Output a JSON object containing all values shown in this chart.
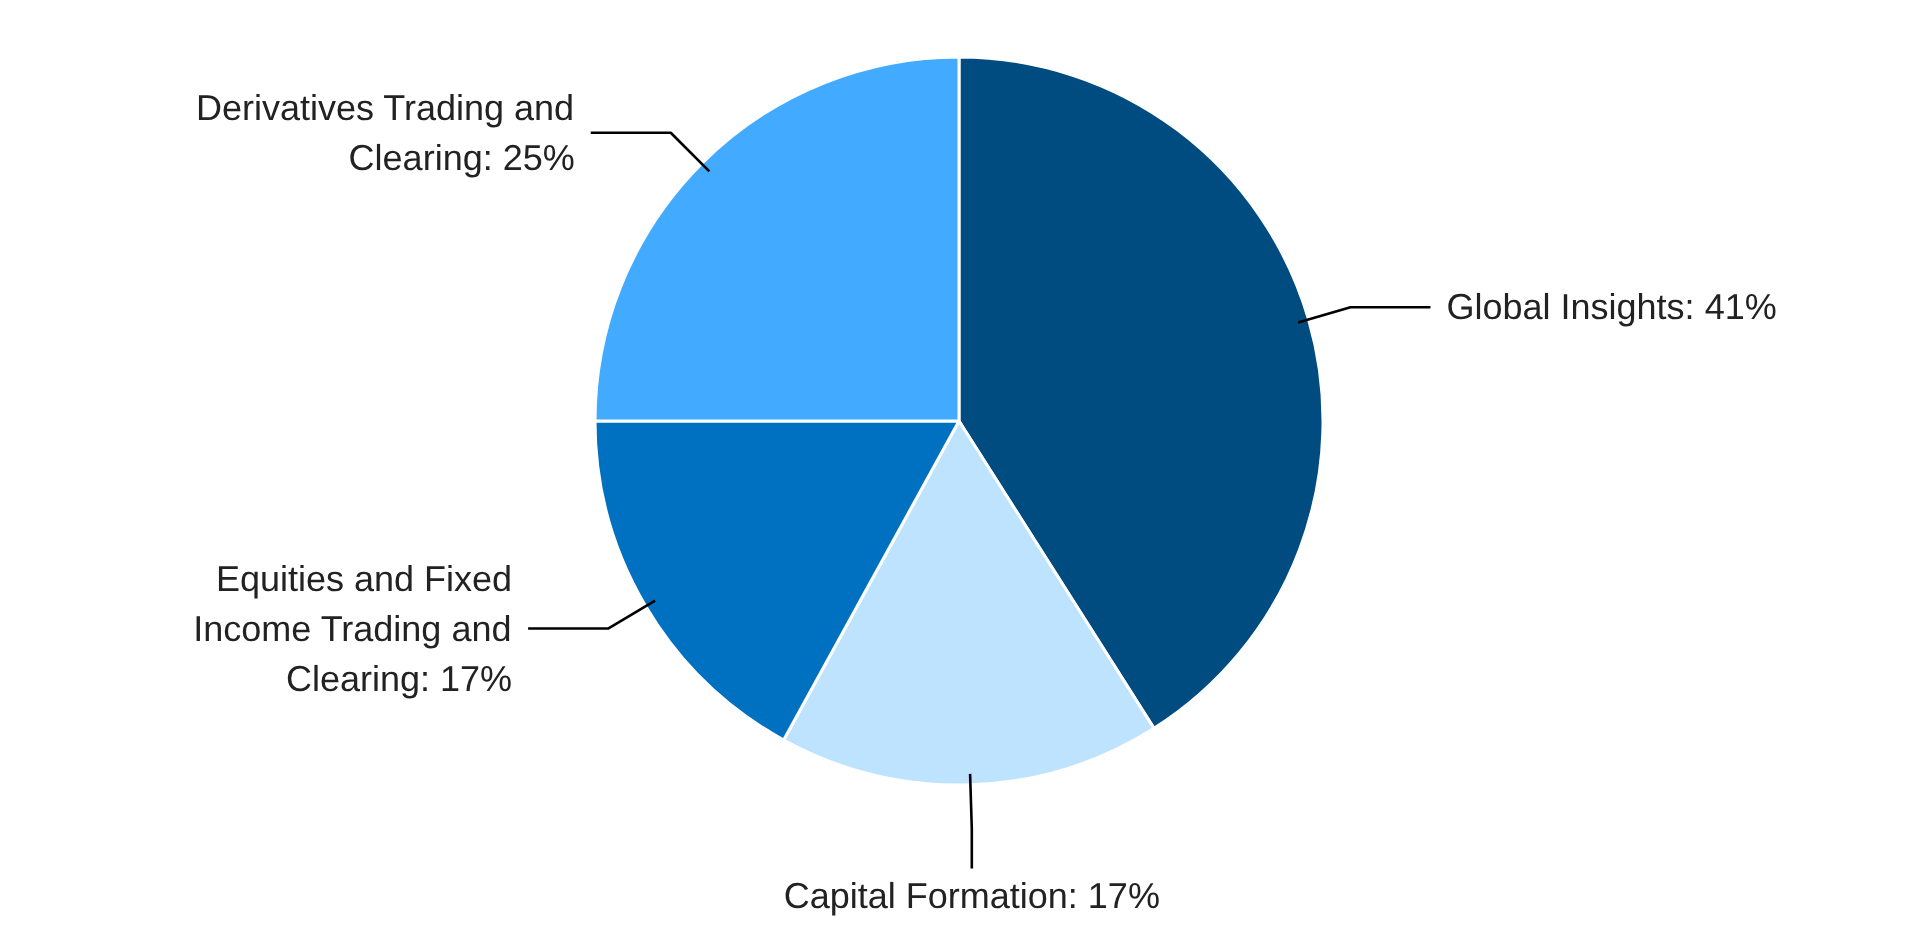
{
  "chart_data": {
    "type": "pie",
    "categories": [
      "Global Insights",
      "Capital Formation",
      "Equities and Fixed Income Trading and Clearing",
      "Derivatives Trading and Clearing"
    ],
    "values": [
      41,
      17,
      17,
      25
    ],
    "colors": [
      "#004b7f",
      "#bde3ff",
      "#0070c0",
      "#42aaff"
    ],
    "value_labels": [
      "41%",
      "17%",
      "17%",
      "25%"
    ]
  }
}
